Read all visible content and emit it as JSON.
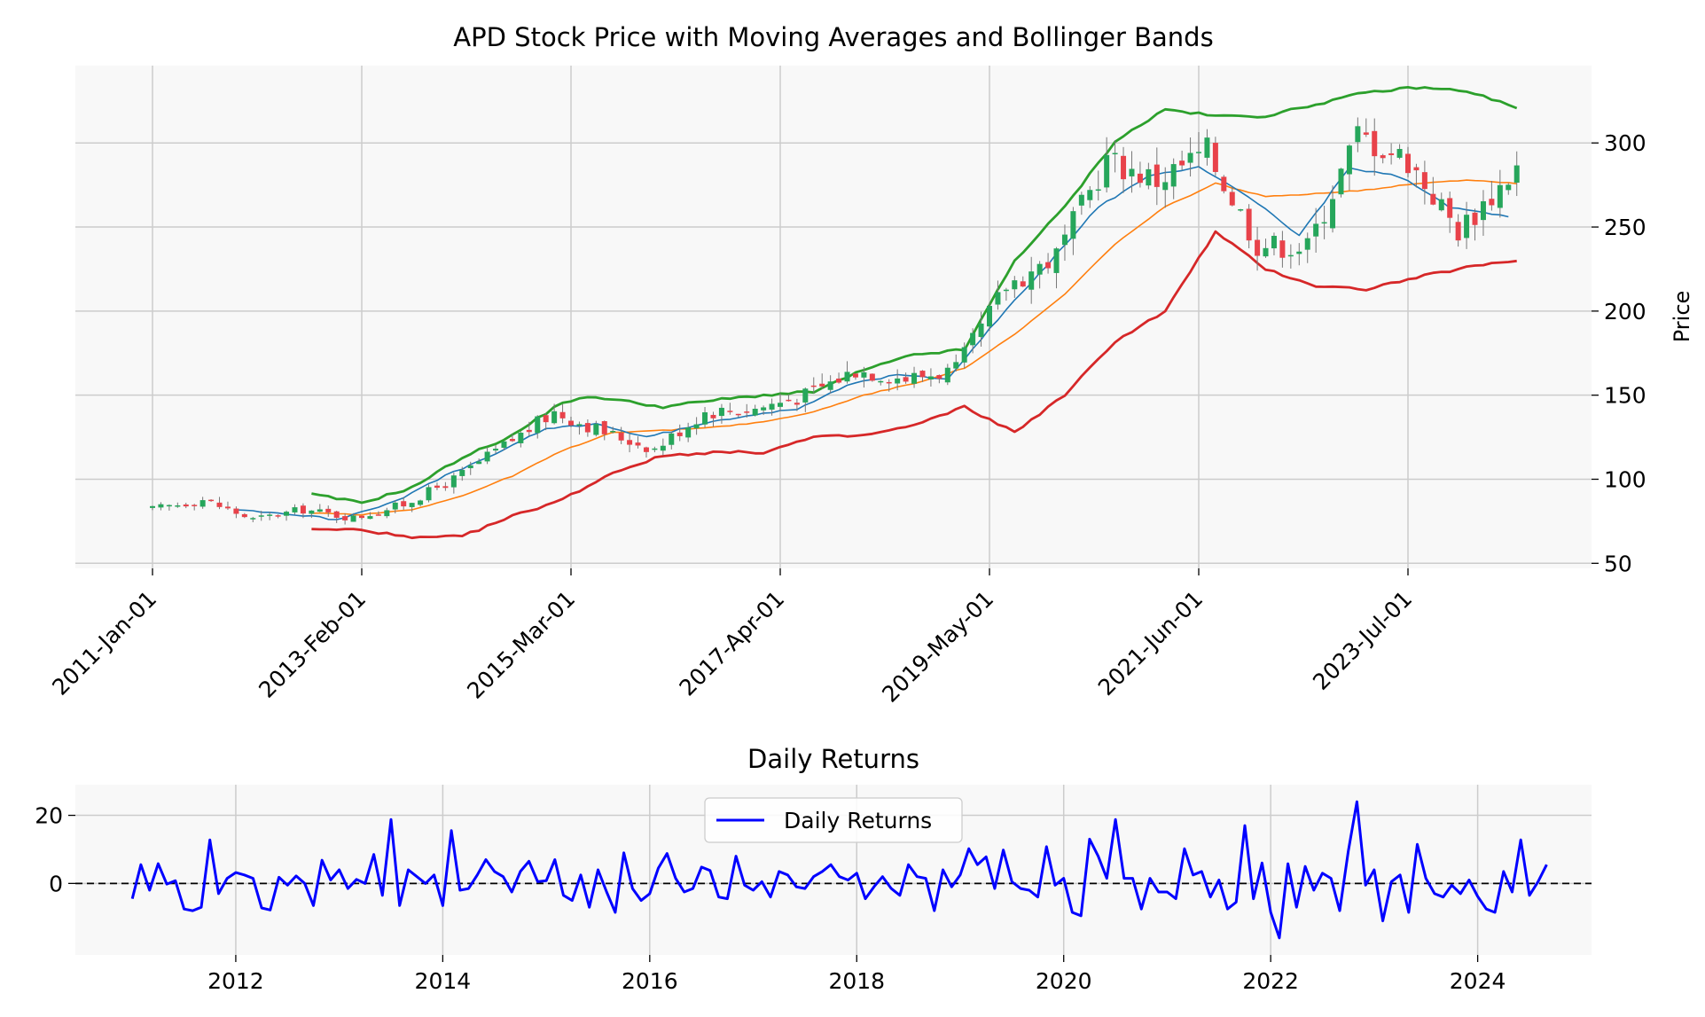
{
  "chart_data": [
    {
      "type": "candlestick",
      "title": "APD Stock Price with Moving Averages and Bollinger Bands",
      "ylabel": "Price",
      "ylim": [
        47,
        346
      ],
      "yticks": [
        50,
        100,
        150,
        200,
        250,
        300
      ],
      "x_tick_labels": [
        "2011-Jan-01",
        "2013-Feb-01",
        "2015-Mar-01",
        "2017-Apr-01",
        "2019-May-01",
        "2021-Jun-01",
        "2023-Jul-01"
      ],
      "frequency": "monthly",
      "start": "2011-01",
      "end": "2024-08",
      "series": [
        {
          "key": "candles",
          "role": "ohlc",
          "up_color": "#26a65b",
          "down_color": "#e8424a"
        },
        {
          "key": "ma_short",
          "role": "line",
          "color": "#1f77b4"
        },
        {
          "key": "ma_long",
          "role": "line",
          "color": "#ff7f0e"
        },
        {
          "key": "bb_upper",
          "role": "line",
          "color": "#2ca02c"
        },
        {
          "key": "bb_lower",
          "role": "line",
          "color": "#d62728"
        }
      ],
      "close_checkpoints": {
        "dates": [
          "2011-01",
          "2011-07",
          "2012-01",
          "2012-07",
          "2013-01",
          "2013-07",
          "2014-01",
          "2014-07",
          "2015-01",
          "2015-07",
          "2016-01",
          "2016-07",
          "2017-01",
          "2017-07",
          "2018-01",
          "2018-07",
          "2019-01",
          "2019-07",
          "2020-01",
          "2020-07",
          "2021-01",
          "2021-07",
          "2022-01",
          "2022-07",
          "2023-01",
          "2023-07",
          "2024-01",
          "2024-08"
        ],
        "values": [
          82,
          88,
          76,
          82,
          77,
          85,
          100,
          120,
          140,
          128,
          118,
          140,
          142,
          150,
          165,
          160,
          165,
          215,
          233,
          290,
          278,
          295,
          240,
          238,
          305,
          290,
          248,
          285
        ]
      },
      "ma_short_checkpoints": {
        "dates": [
          "2011-11",
          "2012-06",
          "2012-11",
          "2013-06",
          "2013-12",
          "2014-06",
          "2014-12",
          "2015-06",
          "2015-12",
          "2016-06",
          "2016-12",
          "2017-06",
          "2017-12",
          "2018-06",
          "2018-12",
          "2019-06",
          "2019-12",
          "2020-06",
          "2020-12",
          "2021-06",
          "2021-12",
          "2022-06",
          "2022-12",
          "2023-06",
          "2023-12",
          "2024-07"
        ],
        "values": [
          82,
          79,
          76,
          87,
          102,
          115,
          130,
          133,
          125,
          132,
          138,
          142,
          156,
          162,
          160,
          195,
          228,
          262,
          280,
          286,
          268,
          245,
          285,
          280,
          262,
          256
        ]
      },
      "ma_long_checkpoints": {
        "dates": [
          "2012-08",
          "2013-02",
          "2013-08",
          "2014-02",
          "2014-08",
          "2015-02",
          "2015-08",
          "2016-02",
          "2016-08",
          "2017-02",
          "2017-08",
          "2018-02",
          "2018-08",
          "2019-02",
          "2019-08",
          "2020-02",
          "2020-08",
          "2021-02",
          "2021-08",
          "2022-02",
          "2022-08",
          "2023-02",
          "2023-08",
          "2024-02",
          "2024-08"
        ],
        "values": [
          80,
          79,
          82,
          90,
          102,
          117,
          128,
          129,
          131,
          134,
          140,
          150,
          157,
          166,
          186,
          210,
          240,
          262,
          276,
          268,
          270,
          272,
          276,
          278,
          276
        ]
      },
      "bb_upper_checkpoints": {
        "dates": [
          "2012-08",
          "2013-02",
          "2013-08",
          "2014-02",
          "2014-08",
          "2015-02",
          "2015-06",
          "2016-02",
          "2016-08",
          "2017-02",
          "2017-08",
          "2018-02",
          "2018-08",
          "2019-02",
          "2019-08",
          "2020-02",
          "2020-08",
          "2021-02",
          "2021-08",
          "2022-02",
          "2022-08",
          "2023-02",
          "2023-08",
          "2024-02",
          "2024-08"
        ],
        "values": [
          91,
          86,
          95,
          113,
          126,
          146,
          149,
          143,
          147,
          150,
          152,
          165,
          174,
          177,
          230,
          262,
          301,
          320,
          316,
          316,
          323,
          330,
          333,
          331,
          321
        ]
      },
      "bb_lower_checkpoints": {
        "dates": [
          "2012-08",
          "2013-02",
          "2013-08",
          "2014-02",
          "2014-08",
          "2015-02",
          "2015-08",
          "2016-02",
          "2016-08",
          "2017-02",
          "2017-08",
          "2018-02",
          "2018-08",
          "2019-02",
          "2019-08",
          "2020-02",
          "2020-08",
          "2021-02",
          "2021-08",
          "2022-02",
          "2022-08",
          "2023-02",
          "2023-08",
          "2024-02",
          "2024-08"
        ],
        "values": [
          70,
          70,
          65,
          66,
          78,
          88,
          104,
          114,
          116,
          116,
          125,
          126,
          132,
          143,
          128,
          150,
          182,
          200,
          247,
          225,
          215,
          213,
          220,
          226,
          230
        ]
      }
    },
    {
      "type": "line",
      "title": "Daily Returns",
      "legend": [
        "Daily Returns"
      ],
      "legend_position": "top-center",
      "line_color": "#0000ff",
      "zero_line": "dashed black",
      "ylim": [
        -21,
        29
      ],
      "yticks": [
        0,
        20
      ],
      "x_tick_labels": [
        "2012",
        "2014",
        "2016",
        "2018",
        "2020",
        "2022",
        "2024"
      ],
      "xlim": [
        2010.45,
        2025.1
      ],
      "frequency": "monthly",
      "start": "2011-01",
      "values": [
        -4.5,
        5.5,
        -2.0,
        5.8,
        -0.2,
        0.8,
        -7.5,
        -8.0,
        -7.0,
        12.8,
        -3.0,
        1.5,
        3.2,
        2.5,
        1.5,
        -7.2,
        -7.8,
        1.8,
        -0.5,
        2.2,
        0.0,
        -6.5,
        6.8,
        1.0,
        4.0,
        -1.5,
        1.2,
        0.0,
        8.5,
        -3.5,
        18.8,
        -6.5,
        4.0,
        2.0,
        0.0,
        2.5,
        -6.5,
        15.5,
        -2.0,
        -1.5,
        2.5,
        7.0,
        3.5,
        2.0,
        -2.5,
        3.5,
        6.5,
        0.5,
        0.8,
        7.0,
        -3.5,
        -5.0,
        2.5,
        -7.0,
        4.0,
        -2.5,
        -8.5,
        9.0,
        -1.5,
        -5.0,
        -3.0,
        4.5,
        8.8,
        1.5,
        -2.5,
        -1.5,
        4.8,
        3.8,
        -4.0,
        -4.5,
        8.0,
        -0.5,
        -2.0,
        0.5,
        -4.0,
        3.5,
        2.5,
        -1.0,
        -1.5,
        2.0,
        3.5,
        5.5,
        2.0,
        1.0,
        3.0,
        -4.5,
        -1.0,
        2.0,
        -1.5,
        -3.5,
        5.5,
        2.0,
        1.5,
        -8.0,
        4.0,
        -1.0,
        2.5,
        10.2,
        5.5,
        7.8,
        -1.5,
        9.8,
        0.5,
        -1.5,
        -2.0,
        -4.0,
        10.8,
        -0.5,
        1.5,
        -8.5,
        -9.5,
        13.0,
        8.0,
        1.5,
        18.8,
        1.5,
        1.5,
        -7.5,
        1.5,
        -2.5,
        -2.5,
        -4.5,
        10.2,
        2.5,
        3.5,
        -4.0,
        1.0,
        -7.5,
        -5.5,
        17.0,
        -4.5,
        6.0,
        -8.5,
        -16.0,
        5.8,
        -7.0,
        5.0,
        -2.0,
        3.0,
        1.5,
        -8.0,
        9.5,
        24.0,
        -0.5,
        4.0,
        -11.0,
        0.5,
        2.5,
        -8.5,
        11.5,
        1.5,
        -3.0,
        -4.0,
        -0.5,
        -3.0,
        1.0,
        -3.8,
        -7.5,
        -8.5,
        3.5,
        -2.5,
        12.8,
        -3.5,
        0.5,
        5.5
      ]
    }
  ]
}
